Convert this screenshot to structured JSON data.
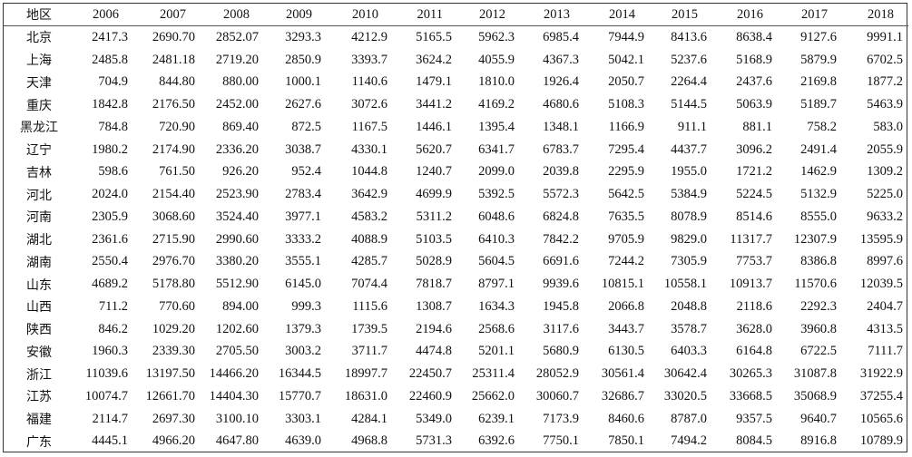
{
  "table": {
    "header_label": "地区",
    "years": [
      "2006",
      "2007",
      "2008",
      "2009",
      "2010",
      "2011",
      "2012",
      "2013",
      "2014",
      "2015",
      "2016",
      "2017",
      "2018"
    ],
    "rows": [
      {
        "region": "北京",
        "values": [
          "2417.3",
          "2690.70",
          "2852.07",
          "3293.3",
          "4212.9",
          "5165.5",
          "5962.3",
          "6985.4",
          "7944.9",
          "8413.6",
          "8638.4",
          "9127.6",
          "9991.1"
        ]
      },
      {
        "region": "上海",
        "values": [
          "2485.8",
          "2481.18",
          "2719.20",
          "2850.9",
          "3393.7",
          "3624.2",
          "4055.9",
          "4367.3",
          "5042.1",
          "5237.6",
          "5168.9",
          "5879.9",
          "6702.5"
        ]
      },
      {
        "region": "天津",
        "values": [
          "704.9",
          "844.80",
          "880.00",
          "1000.1",
          "1140.6",
          "1479.1",
          "1810.0",
          "1926.4",
          "2050.7",
          "2264.4",
          "2437.6",
          "2169.8",
          "1877.2"
        ]
      },
      {
        "region": "重庆",
        "values": [
          "1842.8",
          "2176.50",
          "2452.00",
          "2627.6",
          "3072.6",
          "3441.2",
          "4169.2",
          "4680.6",
          "5108.3",
          "5144.5",
          "5063.9",
          "5189.7",
          "5463.9"
        ]
      },
      {
        "region": "黑龙江",
        "values": [
          "784.8",
          "720.90",
          "869.40",
          "872.5",
          "1167.5",
          "1446.1",
          "1395.4",
          "1348.1",
          "1166.9",
          "911.1",
          "881.1",
          "758.2",
          "583.0"
        ]
      },
      {
        "region": "辽宁",
        "values": [
          "1980.2",
          "2174.90",
          "2336.20",
          "3038.7",
          "4330.1",
          "5620.7",
          "6341.7",
          "6783.7",
          "7295.4",
          "4437.7",
          "3096.2",
          "2491.4",
          "2055.9"
        ]
      },
      {
        "region": "吉林",
        "values": [
          "598.6",
          "761.50",
          "926.20",
          "952.4",
          "1044.8",
          "1240.7",
          "2099.0",
          "2039.8",
          "2295.9",
          "1955.0",
          "1721.2",
          "1462.9",
          "1309.2"
        ]
      },
      {
        "region": "河北",
        "values": [
          "2024.0",
          "2154.40",
          "2523.90",
          "2783.4",
          "3642.9",
          "4699.9",
          "5392.5",
          "5572.3",
          "5642.5",
          "5384.9",
          "5224.5",
          "5132.9",
          "5225.0"
        ]
      },
      {
        "region": "河南",
        "values": [
          "2305.9",
          "3068.60",
          "3524.40",
          "3977.1",
          "4583.2",
          "5311.2",
          "6048.6",
          "6824.8",
          "7635.5",
          "8078.9",
          "8514.6",
          "8555.0",
          "9633.2"
        ]
      },
      {
        "region": "湖北",
        "values": [
          "2361.6",
          "2715.90",
          "2990.60",
          "3333.2",
          "4088.9",
          "5103.5",
          "6410.3",
          "7842.2",
          "9705.9",
          "9829.0",
          "11317.7",
          "12307.9",
          "13595.9"
        ]
      },
      {
        "region": "湖南",
        "values": [
          "2550.4",
          "2976.70",
          "3380.20",
          "3555.1",
          "4285.7",
          "5028.9",
          "5604.5",
          "6691.6",
          "7244.2",
          "7305.9",
          "7753.7",
          "8386.8",
          "8997.6"
        ]
      },
      {
        "region": "山东",
        "values": [
          "4689.2",
          "5178.80",
          "5512.90",
          "6145.0",
          "7074.4",
          "7818.7",
          "8797.1",
          "9939.6",
          "10815.1",
          "10558.1",
          "10913.7",
          "11570.6",
          "12039.5"
        ]
      },
      {
        "region": "山西",
        "values": [
          "711.2",
          "770.60",
          "894.00",
          "999.3",
          "1115.6",
          "1308.7",
          "1634.3",
          "1945.8",
          "2066.8",
          "2048.8",
          "2118.6",
          "2292.3",
          "2404.7"
        ]
      },
      {
        "region": "陕西",
        "values": [
          "846.2",
          "1029.20",
          "1202.60",
          "1379.3",
          "1739.5",
          "2194.6",
          "2568.6",
          "3117.6",
          "3443.7",
          "3578.7",
          "3628.0",
          "3960.8",
          "4313.5"
        ]
      },
      {
        "region": "安徽",
        "values": [
          "1960.3",
          "2339.30",
          "2705.50",
          "3003.2",
          "3711.7",
          "4474.8",
          "5201.1",
          "5680.9",
          "6130.5",
          "6403.3",
          "6164.8",
          "6722.5",
          "7111.7"
        ]
      },
      {
        "region": "浙江",
        "values": [
          "11039.6",
          "13197.50",
          "14466.20",
          "16344.5",
          "18997.7",
          "22450.7",
          "25311.4",
          "28052.9",
          "30561.4",
          "30642.4",
          "30265.3",
          "31087.8",
          "31922.9"
        ]
      },
      {
        "region": "江苏",
        "values": [
          "10074.7",
          "12661.70",
          "14404.30",
          "15770.7",
          "18631.0",
          "22460.9",
          "25662.0",
          "30060.7",
          "32686.7",
          "33020.5",
          "33668.5",
          "35068.9",
          "37255.4"
        ]
      },
      {
        "region": "福建",
        "values": [
          "2114.7",
          "2697.30",
          "3100.10",
          "3303.1",
          "4284.1",
          "5349.0",
          "6239.1",
          "7173.9",
          "8460.6",
          "8787.0",
          "9357.5",
          "9640.7",
          "10565.6"
        ]
      },
      {
        "region": "广东",
        "values": [
          "4445.1",
          "4966.20",
          "4647.80",
          "4639.0",
          "4968.8",
          "5731.3",
          "6392.6",
          "7750.1",
          "7850.1",
          "7494.2",
          "8084.5",
          "8916.8",
          "10789.9"
        ]
      }
    ]
  }
}
